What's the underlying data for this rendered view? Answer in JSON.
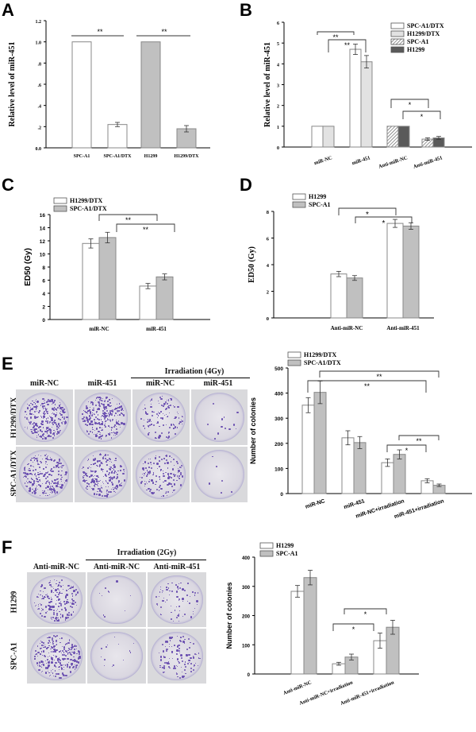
{
  "panels": {
    "A": {
      "letter": "A"
    },
    "B": {
      "letter": "B"
    },
    "C": {
      "letter": "C"
    },
    "D": {
      "letter": "D"
    },
    "E": {
      "letter": "E",
      "photo": {
        "group_header": "Irradiation (4Gy)",
        "columns": [
          "miR-NC",
          "miR-451",
          "miR-NC",
          "miR-451"
        ],
        "rows": [
          "H1299/DTX",
          "SPC-A1/DTX"
        ]
      }
    },
    "F": {
      "letter": "F",
      "photo": {
        "group_header": "Irradiation (2Gy)",
        "columns": [
          "Anti-miR-NC",
          "Anti-miR-NC",
          "Anti-miR-451"
        ],
        "rows": [
          "H1299",
          "SPC-A1"
        ]
      }
    }
  },
  "chart_data": [
    {
      "panel": "A",
      "type": "bar",
      "title": "",
      "xlabel": "",
      "ylabel": "Relative level of miR-451",
      "categories": [
        "SPC-A1",
        "SPC-A1/DTX",
        "H1299",
        "H1299/DTX"
      ],
      "values": [
        1.0,
        0.22,
        1.0,
        0.18
      ],
      "errors": [
        0,
        0.02,
        0,
        0.03
      ],
      "colors": [
        "#ffffff",
        "#ffffff",
        "#c0c0c0",
        "#c0c0c0"
      ],
      "ylim": [
        0,
        1.2
      ],
      "yticks": [
        "0.0",
        ".2",
        ".4",
        ".6",
        ".8",
        "1.0",
        "1.2"
      ],
      "significance": [
        {
          "from": 0,
          "to": 1,
          "label": "**"
        },
        {
          "from": 2,
          "to": 3,
          "label": "**"
        }
      ]
    },
    {
      "panel": "B",
      "type": "bar",
      "title": "",
      "xlabel": "",
      "ylabel": "Relative level of miR-451",
      "categories": [
        "miR-NC",
        "miR-451",
        "Anti-miR-NC",
        "Anti-miR-451"
      ],
      "series": [
        {
          "name": "SPC-A1/DTX",
          "values": [
            1.0,
            4.7,
            null,
            null
          ],
          "errors": [
            0,
            0.25,
            null,
            null
          ],
          "color": "#ffffff"
        },
        {
          "name": "H1299/DTX",
          "values": [
            1.0,
            4.1,
            null,
            null
          ],
          "errors": [
            0,
            0.3,
            null,
            null
          ],
          "color": "#e2e2e2"
        },
        {
          "name": "SPC-A1",
          "values": [
            null,
            null,
            1.0,
            0.38
          ],
          "errors": [
            null,
            null,
            0,
            0.06
          ],
          "color": "hatched"
        },
        {
          "name": "H1299",
          "values": [
            null,
            null,
            1.0,
            0.44
          ],
          "errors": [
            null,
            null,
            0,
            0.07
          ],
          "color": "#5a5a5a"
        }
      ],
      "ylim": [
        0,
        6
      ],
      "yticks": [
        "0",
        "1",
        "2",
        "3",
        "4",
        "5",
        "6"
      ],
      "legend_position": "top-right",
      "significance": [
        "**",
        "**",
        "*",
        "*"
      ]
    },
    {
      "panel": "C",
      "type": "bar",
      "title": "",
      "xlabel": "",
      "ylabel": "ED50 (Gy)",
      "categories": [
        "miR-NC",
        "miR-451"
      ],
      "series": [
        {
          "name": "H1299/DTX",
          "values": [
            11.6,
            5.1
          ],
          "errors": [
            0.7,
            0.4
          ],
          "color": "#ffffff"
        },
        {
          "name": "SPC-A1/DTX",
          "values": [
            12.5,
            6.5
          ],
          "errors": [
            0.8,
            0.45
          ],
          "color": "#c0c0c0"
        }
      ],
      "ylim": [
        0,
        16
      ],
      "yticks": [
        "0",
        "2",
        "4",
        "6",
        "8",
        "10",
        "12",
        "14",
        "16"
      ],
      "legend_position": "top-left",
      "significance": [
        "**",
        "**"
      ]
    },
    {
      "panel": "D",
      "type": "bar",
      "title": "",
      "xlabel": "",
      "ylabel": "ED50 (Gy)",
      "categories": [
        "Anti-miR-NC",
        "Anti-miR-451"
      ],
      "series": [
        {
          "name": "H1299",
          "values": [
            3.3,
            7.1
          ],
          "errors": [
            0.2,
            0.3
          ],
          "color": "#ffffff"
        },
        {
          "name": "SPC-A1",
          "values": [
            3.0,
            6.9
          ],
          "errors": [
            0.18,
            0.25
          ],
          "color": "#c0c0c0"
        }
      ],
      "ylim": [
        0,
        8
      ],
      "yticks": [
        "0",
        "2",
        "4",
        "6",
        "8"
      ],
      "legend_position": "top-left",
      "significance": [
        "*",
        "*"
      ]
    },
    {
      "panel": "E",
      "type": "bar",
      "title": "",
      "xlabel": "",
      "ylabel": "Number of colonies",
      "categories": [
        "miR-NC",
        "miR-451",
        "miR-NC+irradiation",
        "miR-451+irradiation"
      ],
      "series": [
        {
          "name": "H1299/DTX",
          "values": [
            352,
            222,
            123,
            51
          ],
          "errors": [
            30,
            28,
            15,
            8
          ],
          "color": "#ffffff"
        },
        {
          "name": "SPC-A1/DTX",
          "values": [
            403,
            203,
            156,
            33
          ],
          "errors": [
            45,
            24,
            18,
            5
          ],
          "color": "#c0c0c0"
        }
      ],
      "ylim": [
        0,
        500
      ],
      "yticks": [
        "0",
        "100",
        "200",
        "300",
        "400",
        "500"
      ],
      "legend_position": "top-left",
      "significance": [
        "**",
        "**",
        "*",
        "**"
      ]
    },
    {
      "panel": "F",
      "type": "bar",
      "title": "",
      "xlabel": "",
      "ylabel": "Number of colonies",
      "categories": [
        "Anti-miR-NC",
        "Anti-miR-NC+irradiation",
        "Anti-miR-451+irradiation"
      ],
      "series": [
        {
          "name": "H1299",
          "values": [
            283,
            35,
            114
          ],
          "errors": [
            20,
            5,
            26
          ],
          "color": "#ffffff"
        },
        {
          "name": "SPC-A1",
          "values": [
            330,
            58,
            160
          ],
          "errors": [
            25,
            10,
            24
          ],
          "color": "#c0c0c0"
        }
      ],
      "ylim": [
        0,
        400
      ],
      "yticks": [
        "0",
        "100",
        "200",
        "300",
        "400"
      ],
      "legend_position": "top-left",
      "significance": [
        "*",
        "*"
      ]
    }
  ]
}
